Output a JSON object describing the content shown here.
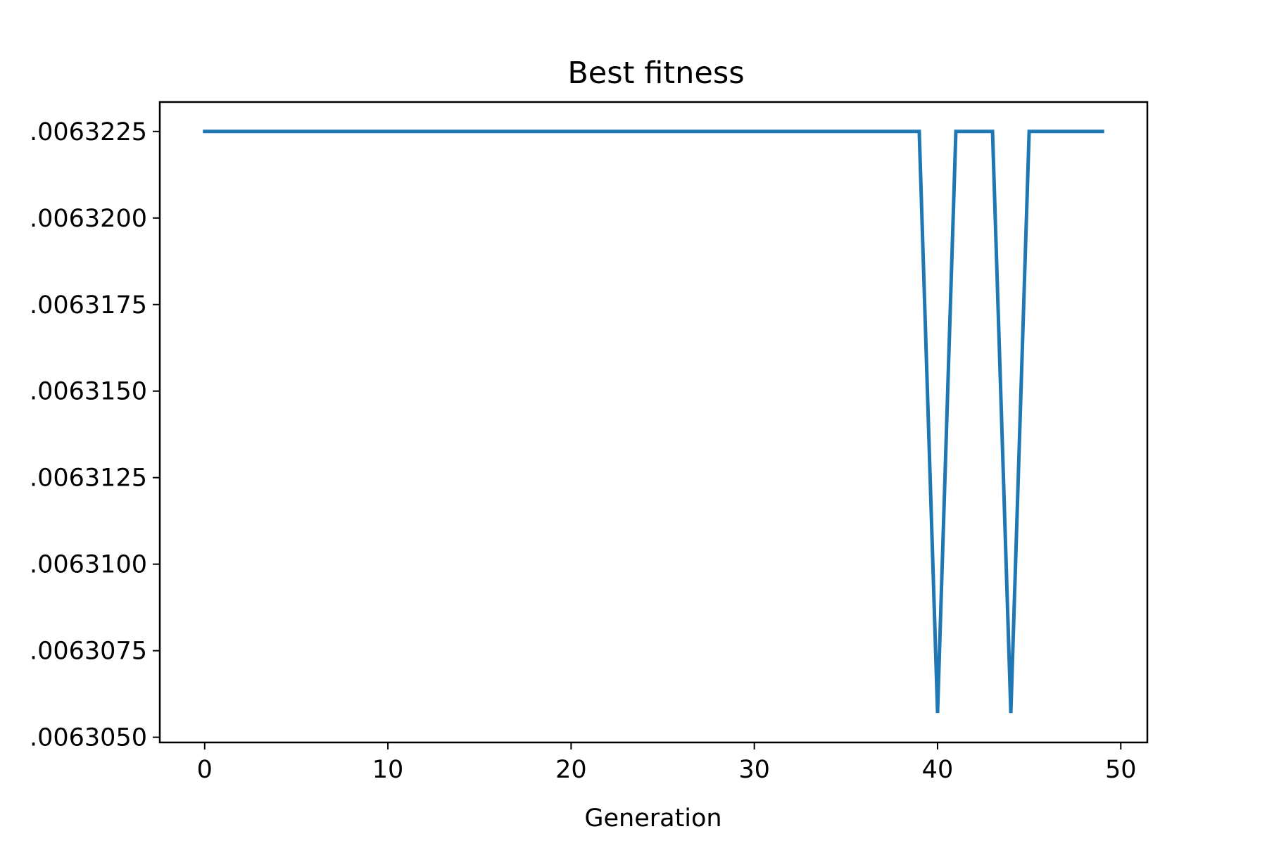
{
  "chart_data": {
    "type": "line",
    "title": "Best fitness",
    "xlabel": "Generation",
    "ylabel": "",
    "x": [
      0,
      1,
      2,
      3,
      4,
      5,
      6,
      7,
      8,
      9,
      10,
      11,
      12,
      13,
      14,
      15,
      16,
      17,
      18,
      19,
      20,
      21,
      22,
      23,
      24,
      25,
      26,
      27,
      28,
      29,
      30,
      31,
      32,
      33,
      34,
      35,
      36,
      37,
      38,
      39,
      40,
      41,
      42,
      43,
      44,
      45,
      46,
      47,
      48,
      49
    ],
    "series": [
      {
        "color": "#1f77b4",
        "values": [
          1.0063225,
          1.0063225,
          1.0063225,
          1.0063225,
          1.0063225,
          1.0063225,
          1.0063225,
          1.0063225,
          1.0063225,
          1.0063225,
          1.0063225,
          1.0063225,
          1.0063225,
          1.0063225,
          1.0063225,
          1.0063225,
          1.0063225,
          1.0063225,
          1.0063225,
          1.0063225,
          1.0063225,
          1.0063225,
          1.0063225,
          1.0063225,
          1.0063225,
          1.0063225,
          1.0063225,
          1.0063225,
          1.0063225,
          1.0063225,
          1.0063225,
          1.0063225,
          1.0063225,
          1.0063225,
          1.0063225,
          1.0063225,
          1.0063225,
          1.0063225,
          1.0063225,
          1.0063225,
          1.0063057,
          1.0063225,
          1.0063225,
          1.0063225,
          1.0063057,
          1.0063225,
          1.0063225,
          1.0063225,
          1.0063225,
          1.0063225
        ]
      }
    ],
    "xlim": [
      -2.45,
      51.45
    ],
    "ylim": [
      1.00630485,
      1.00632335
    ],
    "xticks": [
      0,
      10,
      20,
      30,
      40,
      50
    ],
    "xtick_labels": [
      "0",
      "10",
      "20",
      "30",
      "40",
      "50"
    ],
    "yticks": [
      1.006305,
      1.0063075,
      1.00631,
      1.0063125,
      1.006315,
      1.0063175,
      1.00632,
      1.0063225
    ],
    "ytick_labels": [
      ".0063050",
      ".0063075",
      ".0063100",
      ".0063125",
      ".0063150",
      ".0063175",
      ".0063200",
      ".0063225"
    ],
    "grid": false
  }
}
